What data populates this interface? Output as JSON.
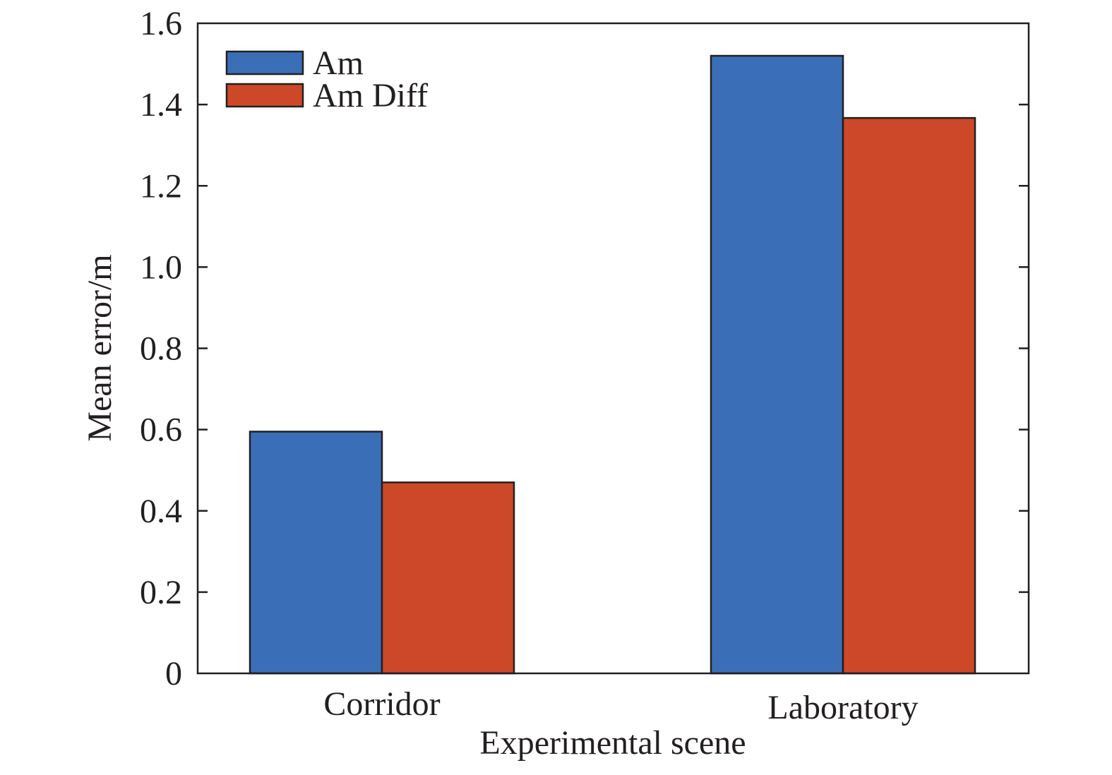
{
  "chart_data": {
    "type": "bar",
    "categories": [
      "Corridor",
      "Laboratory"
    ],
    "series": [
      {
        "name": "Am",
        "values": [
          0.595,
          1.52
        ],
        "color": "#3a6fb8"
      },
      {
        "name": "Am Diff",
        "values": [
          0.47,
          1.367
        ],
        "color": "#cc4828"
      }
    ],
    "xlabel": "Experimental scene",
    "ylabel": "Mean error/m",
    "ylim": [
      0,
      1.6
    ],
    "yticks": [
      0,
      0.2,
      0.4,
      0.6,
      0.8,
      1.0,
      1.2,
      1.4,
      1.6
    ],
    "ytick_labels": [
      "0",
      "0.2",
      "0.4",
      "0.6",
      "0.8",
      "1.0",
      "1.2",
      "1.4",
      "1.6"
    ],
    "legend_position": "top-left",
    "grid": false
  }
}
